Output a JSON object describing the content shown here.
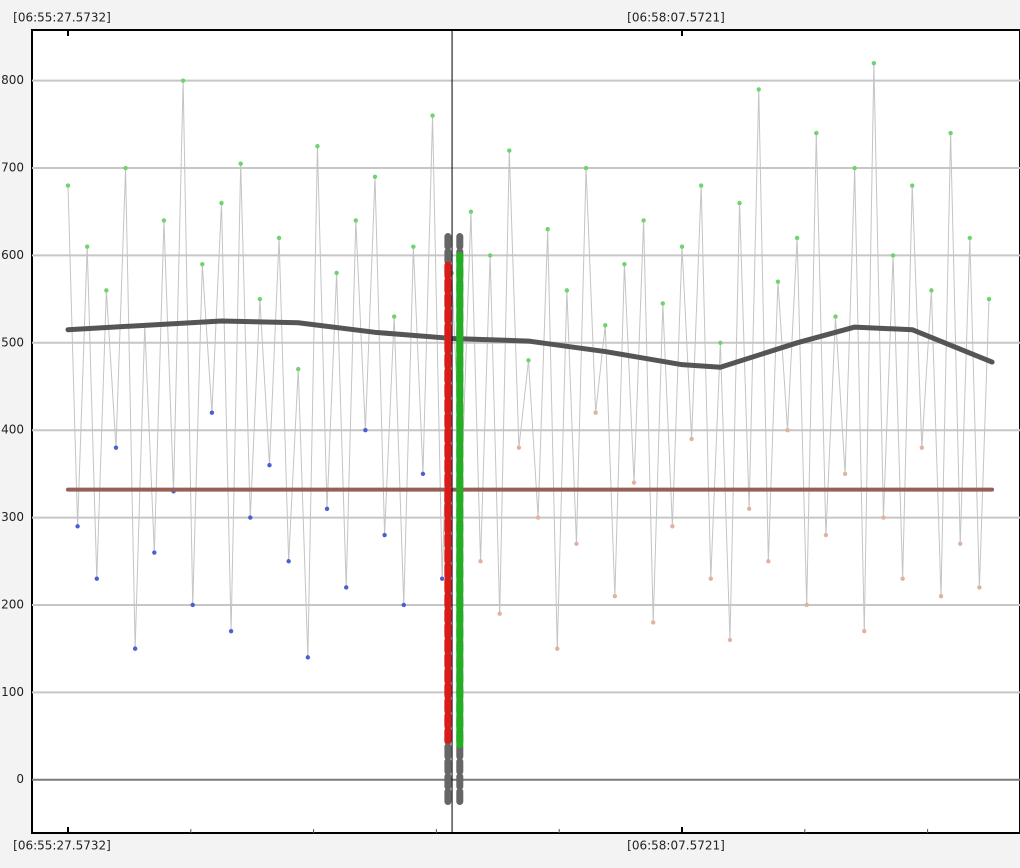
{
  "chart_data": {
    "type": "scatter",
    "xlim": [
      -9.38,
      248.08
    ],
    "ylim": [
      -61,
      858
    ],
    "xticks": [
      {
        "value": 0,
        "label": "[06:55:27.5732]"
      },
      {
        "value": 159.9989,
        "label": "[06:58:07.5721]"
      }
    ],
    "top_xticks": [
      {
        "value": 0,
        "label": "[06:55:27.5732]"
      },
      {
        "value": 159.9989,
        "label": "[06:58:07.5721]"
      }
    ],
    "minor_xticks": [
      32,
      64,
      96,
      128,
      192,
      224
    ],
    "yticks": [
      0,
      100,
      200,
      300,
      400,
      500,
      600,
      700,
      800
    ],
    "grid": true,
    "cursor_x": 100.08,
    "connector_color": "#c4c4c4",
    "series": [
      {
        "color": "#6fd36f",
        "x": [
          0,
          5,
          10,
          15,
          20,
          25,
          30,
          35,
          40,
          45,
          50,
          55,
          60,
          65,
          70,
          75,
          80,
          85,
          90,
          95,
          100,
          105,
          110,
          115,
          120,
          125,
          130,
          135,
          140,
          145,
          150,
          155,
          160,
          165,
          170,
          175,
          180,
          185,
          190,
          195,
          200,
          205,
          210,
          215,
          220,
          225,
          230,
          235,
          240
        ],
        "values": [
          680,
          610,
          560,
          700,
          520,
          640,
          800,
          590,
          660,
          705,
          550,
          620,
          470,
          725,
          580,
          640,
          690,
          530,
          610,
          760,
          580,
          650,
          600,
          720,
          480,
          630,
          560,
          700,
          520,
          590,
          640,
          545,
          610,
          680,
          500,
          660,
          790,
          570,
          620,
          740,
          530,
          700,
          820,
          600,
          680,
          560,
          740,
          620,
          550
        ]
      },
      {
        "color": "#4a5fd0",
        "x": [
          2.5,
          7.5,
          12.5,
          17.5,
          22.5,
          27.5,
          32.5,
          37.5,
          42.5,
          47.5,
          52.5,
          57.5,
          62.5,
          67.5,
          72.5,
          77.5,
          82.5,
          87.5,
          92.5,
          97.5
        ],
        "values": [
          290,
          230,
          380,
          150,
          260,
          330,
          200,
          420,
          170,
          300,
          360,
          250,
          140,
          310,
          220,
          400,
          280,
          200,
          350,
          230
        ]
      },
      {
        "color": "#e2b2a0",
        "x": [
          102.5,
          107.5,
          112.5,
          117.5,
          122.5,
          127.5,
          132.5,
          137.5,
          142.5,
          147.5,
          152.5,
          157.5,
          162.5,
          167.5,
          172.5,
          177.5,
          182.5,
          187.5,
          192.5,
          197.5,
          202.5,
          207.5,
          212.5,
          217.5,
          222.5,
          227.5,
          232.5,
          237.5
        ],
        "values": [
          330,
          250,
          190,
          380,
          300,
          150,
          270,
          420,
          210,
          340,
          180,
          290,
          390,
          230,
          160,
          310,
          250,
          400,
          200,
          280,
          350,
          170,
          300,
          230,
          380,
          210,
          270,
          220
        ]
      }
    ],
    "trend": {
      "color": "#555555",
      "x": [
        0,
        20,
        40,
        60,
        80,
        100,
        120,
        140,
        160,
        170,
        190,
        205,
        220,
        240.8
      ],
      "values": [
        515,
        520,
        525,
        523,
        512,
        505,
        502,
        490,
        475,
        472,
        500,
        518,
        515,
        478
      ]
    },
    "mean": {
      "color": "#946058",
      "x": [
        0,
        240.8
      ],
      "values": [
        332,
        332
      ]
    },
    "range_bars": [
      {
        "x": 99.0,
        "low": -25,
        "high": 625,
        "color": "#666666"
      },
      {
        "x": 99.0,
        "low": 45,
        "high": 590,
        "color": "#dd1a1a"
      },
      {
        "x": 102.1,
        "low": -25,
        "high": 625,
        "color": "#666666"
      },
      {
        "x": 102.1,
        "low": 40,
        "high": 600,
        "color": "#22b022"
      }
    ]
  }
}
